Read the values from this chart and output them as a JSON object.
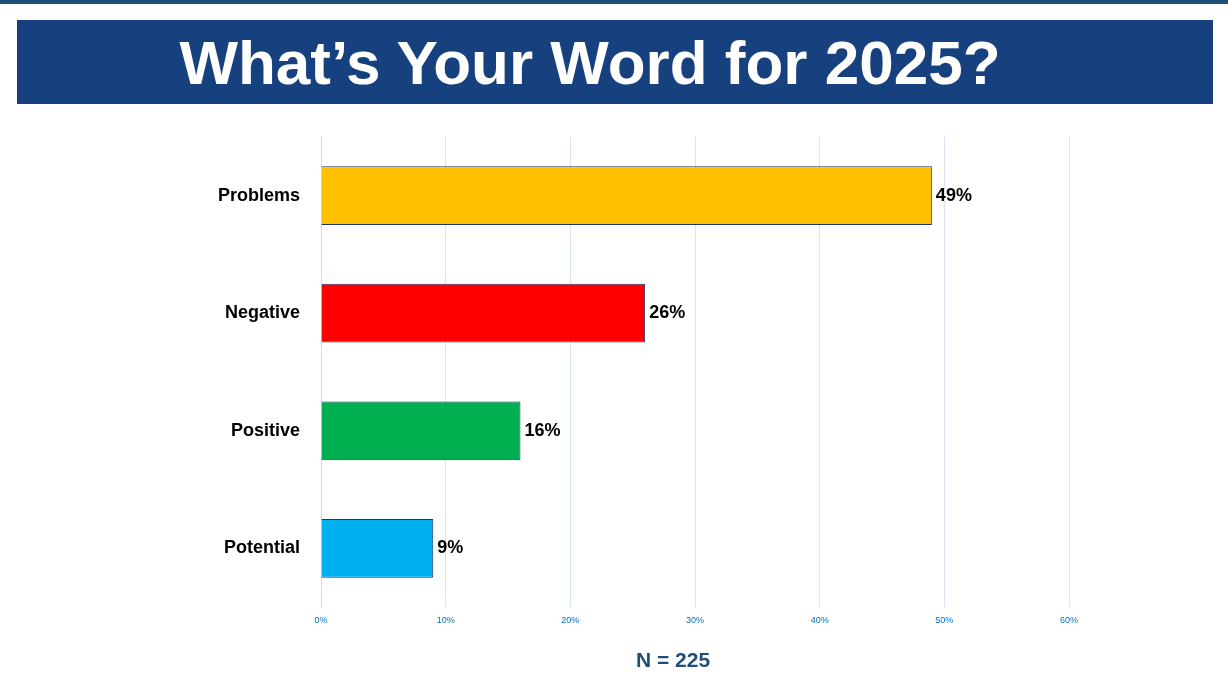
{
  "chart_data": {
    "type": "bar",
    "orientation": "horizontal",
    "title": "What’s Your Word for 2025?",
    "categories": [
      "Problems",
      "Negative",
      "Positive",
      "Potential"
    ],
    "values": [
      49,
      26,
      16,
      9
    ],
    "colors": [
      "#ffc000",
      "#ff0000",
      "#00b050",
      "#00b0f0"
    ],
    "value_labels": [
      "49%",
      "26%",
      "16%",
      "9%"
    ],
    "xlim": [
      0,
      60
    ],
    "xticks": [
      {
        "value": 0,
        "label": "0%"
      },
      {
        "value": 10,
        "label": "10%"
      },
      {
        "value": 20,
        "label": "20%"
      },
      {
        "value": 30,
        "label": "30%"
      },
      {
        "value": 40,
        "label": "40%"
      },
      {
        "value": 50,
        "label": "50%"
      },
      {
        "value": 60,
        "label": "60%"
      }
    ],
    "grid": "x",
    "legend": false,
    "annotations": [
      "N = 225"
    ]
  }
}
